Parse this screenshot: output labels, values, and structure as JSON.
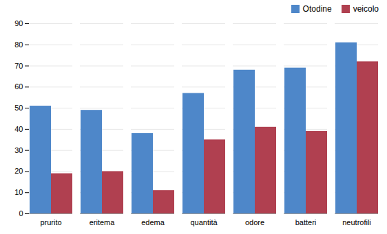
{
  "chart_data": {
    "type": "bar",
    "categories": [
      "prurito",
      "eritema",
      "edema",
      "quantità",
      "odore",
      "batteri",
      "neutrofili"
    ],
    "series": [
      {
        "name": "Otodine",
        "color": "#4E87C9",
        "values": [
          51,
          49,
          38,
          57,
          68,
          69,
          81
        ]
      },
      {
        "name": "veicolo",
        "color": "#B04050",
        "values": [
          19,
          20,
          11,
          35,
          41,
          39,
          72
        ]
      }
    ],
    "ylim": [
      0,
      90
    ],
    "yticks": [
      0,
      10,
      20,
      30,
      40,
      50,
      60,
      70,
      80,
      90
    ],
    "grid": true,
    "legend": "upper right"
  }
}
